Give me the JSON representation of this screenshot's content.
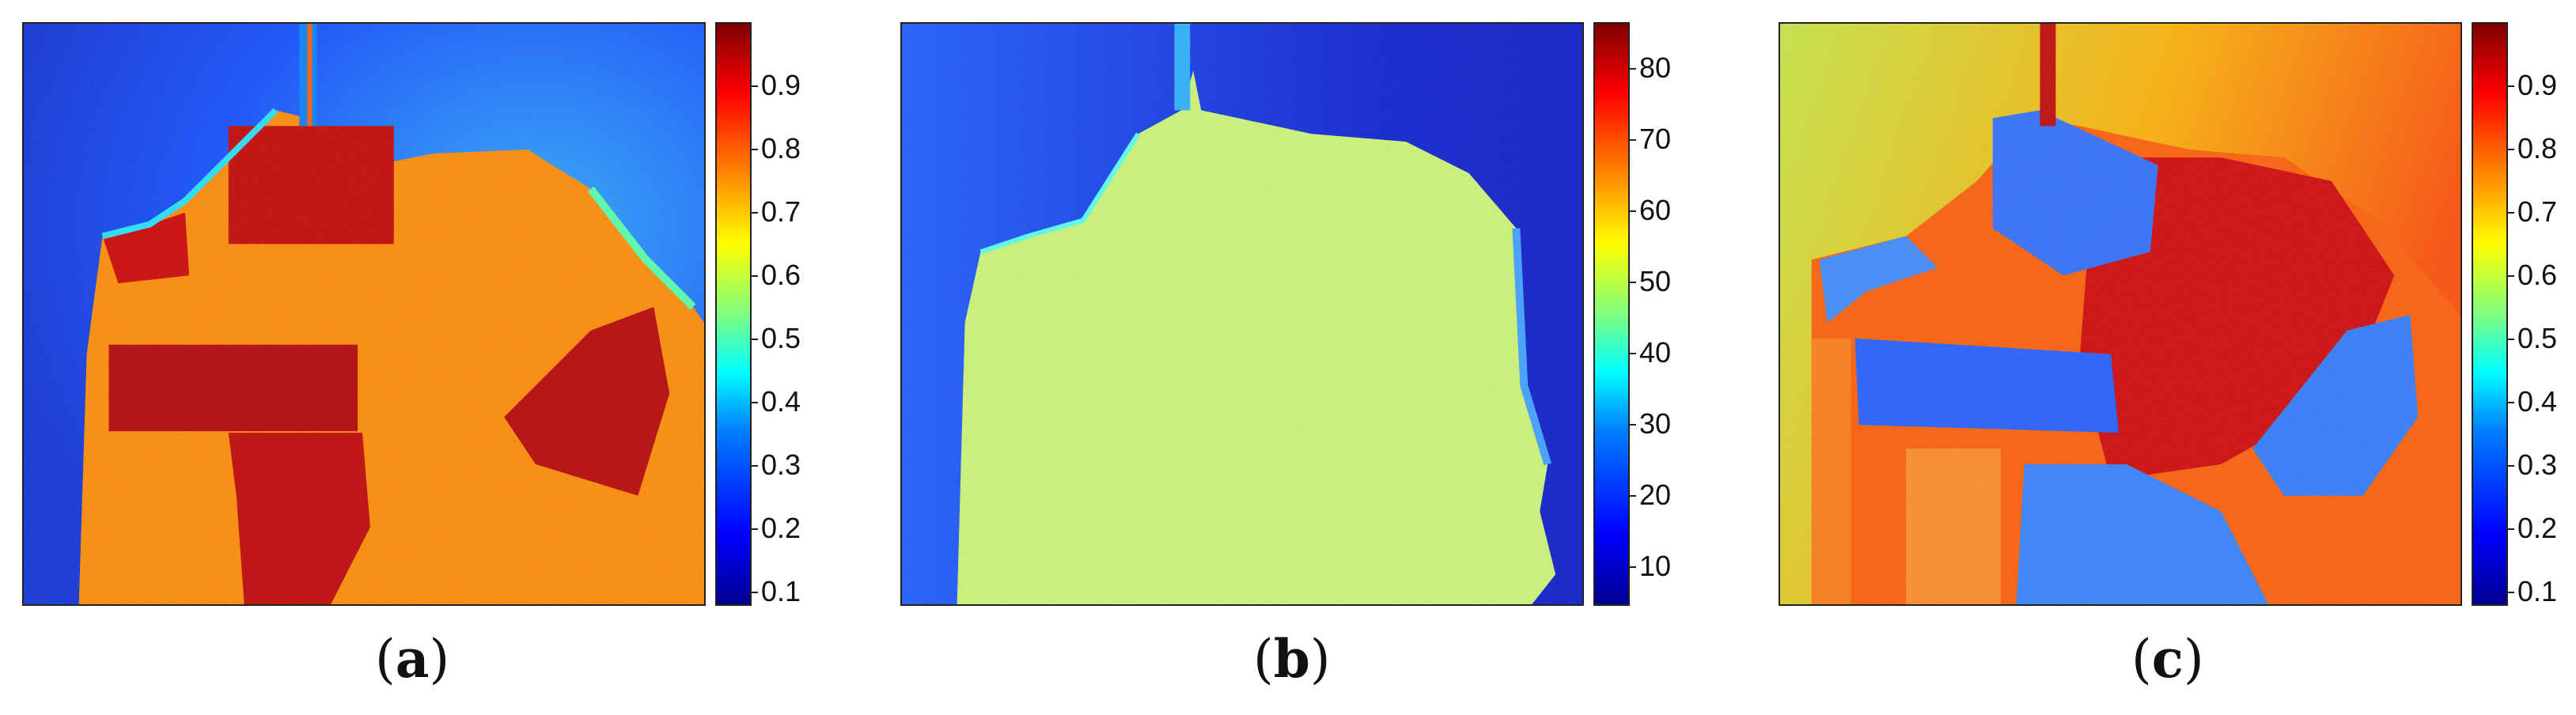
{
  "panels": [
    {
      "caption_open": "(",
      "caption_letter": "a",
      "caption_close": ")",
      "colorbar_ticks": [
        "0.9",
        "0.8",
        "0.7",
        "0.6",
        "0.5",
        "0.4",
        "0.3",
        "0.2",
        "0.1"
      ],
      "colormap": "jet"
    },
    {
      "caption_open": "(",
      "caption_letter": "b",
      "caption_close": ")",
      "colorbar_ticks": [
        "80",
        "70",
        "60",
        "50",
        "40",
        "30",
        "20",
        "10"
      ],
      "colormap": "jet"
    },
    {
      "caption_open": "(",
      "caption_letter": "c",
      "caption_close": ")",
      "colorbar_ticks": [
        "0.9",
        "0.8",
        "0.7",
        "0.6",
        "0.5",
        "0.4",
        "0.3",
        "0.2",
        "0.1"
      ],
      "colormap": "jet"
    }
  ],
  "colors": {
    "dark_blue": "#00008f",
    "blue": "#0000ff",
    "light_blue": "#007fff",
    "cyan": "#00ffff",
    "green": "#7fff7f",
    "yellow": "#ffff00",
    "orange": "#ff7f00",
    "red": "#ff0000",
    "dark_red": "#7f0000"
  }
}
